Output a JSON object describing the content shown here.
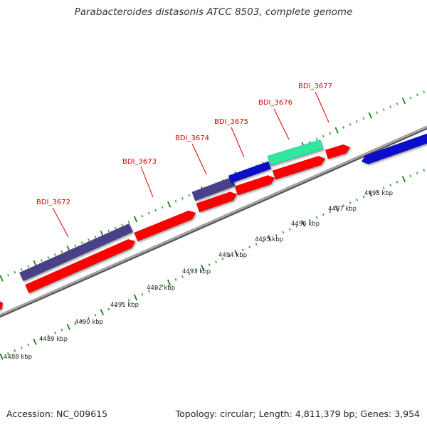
{
  "title": "Parabacteroides distasonis ATCC 8503, complete genome",
  "footer": {
    "accession": "Accession: NC_009615",
    "summary": "Topology: circular; Length: 4,811,379 bp; Genes: 3,954"
  },
  "colors": {
    "backbone": "#8a8a8a",
    "tick_major": "#1e7d1e",
    "tick_minor": "#2e9a2e",
    "label_red": "#e00000",
    "gene_red": "#ff0000",
    "gene_purple": "#4a3f8a",
    "gene_blue": "#1010cc",
    "gene_teal": "#2ee8a0"
  },
  "scale_labels": [
    "4488 kbp",
    "4489 kbp",
    "4490 kbp",
    "4491 kbp",
    "4492 kbp",
    "4493 kbp",
    "4494 kbp",
    "4495 kbp",
    "4496 kbp",
    "4497 kbp",
    "4498 kbp"
  ],
  "gene_labels": [
    "BDI_3672",
    "BDI_3673",
    "BDI_3674",
    "BDI_3675",
    "BDI_3676",
    "BDI_3677"
  ]
}
